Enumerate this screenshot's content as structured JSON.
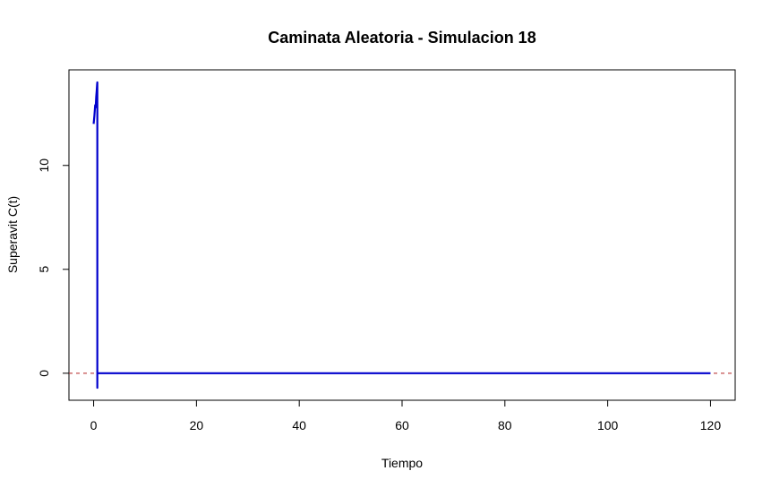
{
  "chart_data": {
    "type": "line",
    "title": "Caminata Aleatoria - Simulacion 18",
    "xlabel": "Tiempo",
    "ylabel": "Superavit C(t)",
    "xlim": [
      -4.8,
      124.8
    ],
    "ylim": [
      -1.3,
      14.6
    ],
    "xticks": [
      0,
      20,
      40,
      60,
      80,
      100,
      120
    ],
    "yticks": [
      0,
      5,
      10
    ],
    "grid": false,
    "legend": "none",
    "reference_line": {
      "y": 0,
      "style": "dashed",
      "color": "#b22222"
    },
    "series": [
      {
        "color": "#0000cd",
        "x": [
          0,
          0.15,
          0.3,
          0.4,
          0.5,
          0.6,
          0.68,
          0.72,
          0.72,
          0.72,
          1,
          20,
          40,
          60,
          80,
          100,
          120
        ],
        "y": [
          12.0,
          12.4,
          12.9,
          12.8,
          13.3,
          13.6,
          13.9,
          14.0,
          -0.7,
          0,
          0,
          0,
          0,
          0,
          0,
          0,
          0
        ]
      }
    ]
  }
}
